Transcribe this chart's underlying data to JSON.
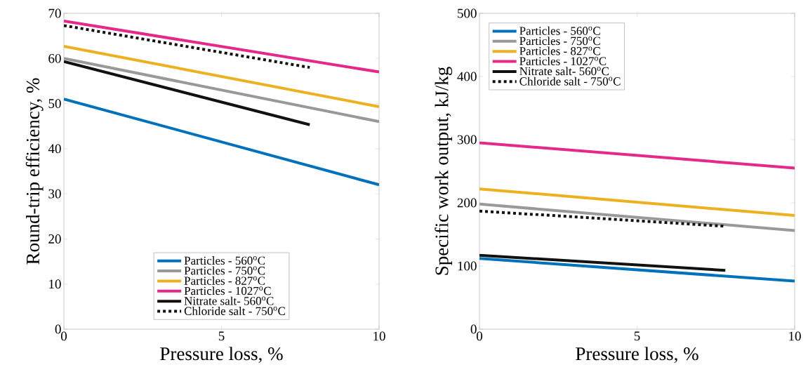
{
  "chart_data": [
    {
      "type": "line",
      "xlabel": "Pressure loss, %",
      "ylabel": "Round-trip efficiency, %",
      "xlim": [
        0,
        10
      ],
      "ylim": [
        0,
        70
      ],
      "xticks": [
        0,
        5,
        10
      ],
      "yticks": [
        0,
        10,
        20,
        30,
        40,
        50,
        60,
        70
      ],
      "grid": false,
      "legend": "bottom",
      "line_style": "solid",
      "series": [
        {
          "name": "Particles - 560$^{o}$C",
          "color": "#0072bd",
          "x": [
            0,
            10
          ],
          "values": [
            51,
            32
          ]
        },
        {
          "name": "Particles - 750$^{o}$C",
          "color": "#999999",
          "x": [
            0,
            10
          ],
          "values": [
            60,
            46
          ]
        },
        {
          "name": "Particles - 827$^{o}$C",
          "color": "#edb120",
          "x": [
            0,
            10
          ],
          "values": [
            62.7,
            49.3
          ]
        },
        {
          "name": "Particles - 1027$^{o}$C",
          "color": "#e6288a",
          "x": [
            0,
            10
          ],
          "values": [
            68.3,
            57
          ]
        },
        {
          "name": "Nitrate salt- 560$^{o}$C",
          "color": "#111111",
          "x": [
            0,
            7.8
          ],
          "values": [
            59.3,
            45.3
          ]
        },
        {
          "name": "Chloride salt - 750$^{o}$C",
          "color": "#111111",
          "line_style": "dotted",
          "x": [
            0,
            7.8
          ],
          "values": [
            67.3,
            58
          ]
        }
      ]
    },
    {
      "type": "line",
      "xlabel": "Pressure loss, %",
      "ylabel": "Specific work output, kJ/kg",
      "xlim": [
        0,
        10
      ],
      "ylim": [
        0,
        500
      ],
      "xticks": [
        0,
        5,
        10
      ],
      "yticks": [
        0,
        100,
        200,
        300,
        400,
        500
      ],
      "grid": false,
      "legend": "top left",
      "line_style": "solid",
      "series": [
        {
          "name": "Particles - 560$^{o}$C",
          "color": "#0072bd",
          "x": [
            0,
            10
          ],
          "values": [
            112,
            76
          ]
        },
        {
          "name": "Particles - 750$^{o}$C",
          "color": "#999999",
          "x": [
            0,
            10
          ],
          "values": [
            198,
            156
          ]
        },
        {
          "name": "Particles - 827$^{o}$C",
          "color": "#edb120",
          "x": [
            0,
            10
          ],
          "values": [
            222,
            180
          ]
        },
        {
          "name": "Particles - 1027$^{o}$C",
          "color": "#e6288a",
          "x": [
            0,
            10
          ],
          "values": [
            295,
            255
          ]
        },
        {
          "name": "Nitrate salt- 560$^{o}$C",
          "color": "#111111",
          "x": [
            0,
            7.8
          ],
          "values": [
            117,
            93
          ]
        },
        {
          "name": "Chloride salt - 750$^{o}$C",
          "color": "#111111",
          "line_style": "dotted",
          "x": [
            0,
            7.8
          ],
          "values": [
            187,
            163
          ]
        }
      ]
    }
  ]
}
